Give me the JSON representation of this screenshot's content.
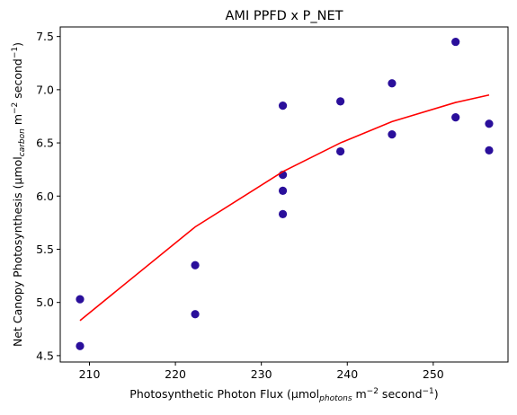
{
  "chart_data": {
    "type": "scatter",
    "title": "AMI PPFD x P_NET",
    "xlabel": {
      "prefix": "Photosynthetic Photon Flux (µmol",
      "sub": "photons",
      "mid": " m",
      "sup1": "−2",
      "mid2": " second",
      "sup2": "−1",
      "suffix": ")"
    },
    "ylabel": {
      "prefix": "Net Canopy Photosynthesis (µmol",
      "sub": "carbon",
      "mid": " m",
      "sup1": "−2",
      "mid2": " second",
      "sup2": "−1",
      "suffix": ")"
    },
    "xlim": [
      206.6,
      258.7
    ],
    "ylim": [
      4.44,
      7.59
    ],
    "xticks": [
      210,
      220,
      230,
      240,
      250
    ],
    "yticks": [
      4.5,
      5.0,
      5.5,
      6.0,
      6.5,
      7.0,
      7.5
    ],
    "ytick_labels": [
      "4.5",
      "5.0",
      "5.5",
      "6.0",
      "6.5",
      "7.0",
      "7.5"
    ],
    "grid": false,
    "series": [
      {
        "kind": "scatter",
        "color": "#2a0f9b",
        "points": [
          {
            "x": 208.9,
            "y": 5.03
          },
          {
            "x": 208.9,
            "y": 4.59
          },
          {
            "x": 222.3,
            "y": 5.35
          },
          {
            "x": 222.3,
            "y": 4.89
          },
          {
            "x": 232.5,
            "y": 6.85
          },
          {
            "x": 232.5,
            "y": 6.2
          },
          {
            "x": 232.5,
            "y": 6.05
          },
          {
            "x": 232.5,
            "y": 5.83
          },
          {
            "x": 239.2,
            "y": 6.89
          },
          {
            "x": 239.2,
            "y": 6.42
          },
          {
            "x": 245.2,
            "y": 7.06
          },
          {
            "x": 245.2,
            "y": 6.58
          },
          {
            "x": 252.6,
            "y": 7.45
          },
          {
            "x": 252.6,
            "y": 6.74
          },
          {
            "x": 256.5,
            "y": 6.68
          },
          {
            "x": 256.5,
            "y": 6.43
          }
        ]
      },
      {
        "kind": "line",
        "color": "#ff0000",
        "points": [
          {
            "x": 208.9,
            "y": 4.83
          },
          {
            "x": 222.3,
            "y": 5.71
          },
          {
            "x": 232.5,
            "y": 6.23
          },
          {
            "x": 239.2,
            "y": 6.5
          },
          {
            "x": 245.2,
            "y": 6.7
          },
          {
            "x": 252.6,
            "y": 6.88
          },
          {
            "x": 256.5,
            "y": 6.95
          }
        ]
      }
    ]
  }
}
